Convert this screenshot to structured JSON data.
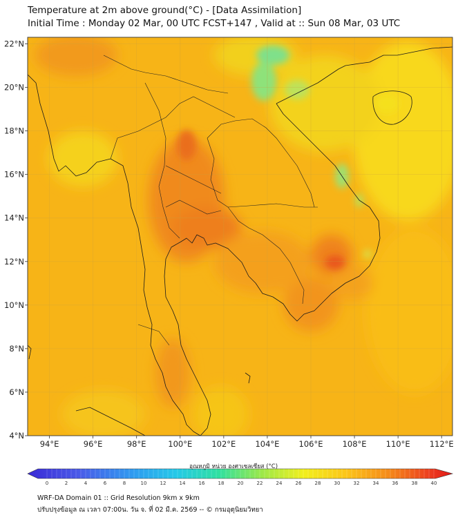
{
  "header": {
    "title": "Temperature at 2m above ground(°C) - [Data Assimilation]",
    "subtitle": "Initial Time : Monday 02 Mar, 00 UTC FCST+147 , Valid at :: Sun 08 Mar, 03 UTC"
  },
  "map": {
    "lat_labels": [
      "22°N",
      "20°N",
      "18°N",
      "16°N",
      "14°N",
      "12°N",
      "10°N",
      "8°N",
      "6°N",
      "4°N"
    ],
    "lon_labels": [
      "94°E",
      "96°E",
      "98°E",
      "100°E",
      "102°E",
      "104°E",
      "106°E",
      "108°E",
      "110°E",
      "112°E"
    ],
    "lat_range": [
      4,
      22.3
    ],
    "lon_range": [
      93,
      112.5
    ]
  },
  "colorbar": {
    "title": "อุณหภูมิ หน่วย องศาเซลเซียส (°C)",
    "ticks": [
      "0",
      "2",
      "4",
      "6",
      "8",
      "10",
      "12",
      "14",
      "16",
      "18",
      "20",
      "22",
      "24",
      "26",
      "28",
      "30",
      "32",
      "34",
      "36",
      "38",
      "40"
    ],
    "range": [
      0,
      40
    ]
  },
  "footer": {
    "line1": "WRF-DA Domain 01 :: Grid Resolution 9km x 9km",
    "line2": "ปรับปรุงข้อมูล ณ เวลา 07:00น. วัน จ. ที่ 02 มี.ค. 2569 -- © กรมอุตุนิยมวิทยา"
  }
}
